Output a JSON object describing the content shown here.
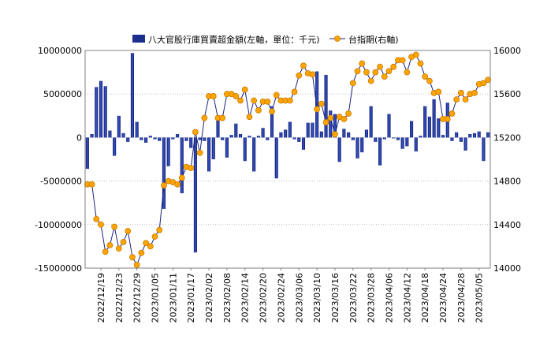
{
  "chart_data": {
    "type": "bar+line",
    "legend": {
      "placement": "top-center",
      "bar_label": "八大官股行庫買賣超金額(左軸，單位：千元)",
      "line_label": "台指期(右軸)"
    },
    "colors": {
      "bar": "#1c2f8c",
      "line": "#1a237e",
      "marker": "#ffa500",
      "marker_edge": "#c87800",
      "grid": "#bdbdbd"
    },
    "grid": "horizontal-dotted",
    "left_axis": {
      "min": -15000000,
      "max": 10000000,
      "ticks": [
        "10000000",
        "5000000",
        "0",
        "-5000000",
        "-10000000",
        "-15000000"
      ]
    },
    "right_axis": {
      "min": 14000,
      "max": 16000,
      "ticks": [
        "16000",
        "15600",
        "15200",
        "14800",
        "14400",
        "14000"
      ]
    },
    "x_labels": [
      "2022/12/19",
      "2022/12/23",
      "2022/12/29",
      "2023/01/05",
      "2023/01/11",
      "2023/01/17",
      "2023/02/02",
      "2023/02/08",
      "2023/02/14",
      "2023/02/20",
      "2023/02/24",
      "2023/03/06",
      "2023/03/10",
      "2023/03/16",
      "2023/03/22",
      "2023/03/28",
      "2023/04/06",
      "2023/04/12",
      "2023/04/18",
      "2023/04/24",
      "2023/04/28",
      "2023/05/05"
    ],
    "x_label_positions": [
      3,
      7,
      11,
      15,
      19,
      23,
      27,
      31,
      35,
      39,
      43,
      47,
      51,
      55,
      59,
      63,
      67,
      71,
      75,
      79,
      83,
      87
    ],
    "bars": [
      -3600000,
      400000,
      5800000,
      6500000,
      5900000,
      800000,
      -2100000,
      2500000,
      500000,
      -500000,
      9700000,
      1800000,
      -300000,
      -600000,
      200000,
      -200000,
      -400000,
      -8200000,
      -3300000,
      -200000,
      400000,
      -6400000,
      -400000,
      -1200000,
      -13200000,
      -300000,
      -400000,
      -3900000,
      -2500000,
      2100000,
      -300000,
      -2300000,
      300000,
      1600000,
      400000,
      -2700000,
      200000,
      -3900000,
      200000,
      1100000,
      -300000,
      3600000,
      -4700000,
      600000,
      900000,
      1800000,
      -200000,
      -500000,
      -1400000,
      1700000,
      1700000,
      7600000,
      700000,
      7200000,
      3100000,
      2700000,
      -2800000,
      1000000,
      600000,
      -300000,
      -2400000,
      -1700000,
      900000,
      3600000,
      -500000,
      -3200000,
      -200000,
      2700000,
      -100000,
      -300000,
      -1300000,
      -1000000,
      1900000,
      -1600000,
      200000,
      3600000,
      2400000,
      4400000,
      2200000,
      300000,
      4000000,
      -400000,
      600000,
      -500000,
      -1500000,
      400000,
      500000,
      700000,
      -2700000,
      600000
    ],
    "line": [
      14770,
      14770,
      14450,
      14400,
      14150,
      14210,
      14380,
      14180,
      14240,
      14340,
      14100,
      14030,
      14140,
      14230,
      14200,
      14290,
      14350,
      14760,
      14800,
      14790,
      14770,
      14830,
      14930,
      14920,
      15250,
      15060,
      15380,
      15580,
      15580,
      15380,
      15380,
      15600,
      15600,
      15580,
      15540,
      15640,
      15390,
      15540,
      15450,
      15530,
      15530,
      15440,
      15590,
      15540,
      15540,
      15540,
      15620,
      15770,
      15860,
      15790,
      15780,
      15460,
      15510,
      15340,
      15380,
      15230,
      15390,
      15370,
      15420,
      15700,
      15810,
      15880,
      15800,
      15720,
      15800,
      15850,
      15760,
      15810,
      15850,
      15910,
      15910,
      15800,
      15940,
      15960,
      15880,
      15760,
      15720,
      15610,
      15620,
      15370,
      15370,
      15420,
      15550,
      15610,
      15550,
      15600,
      15610,
      15690,
      15700,
      15730
    ]
  }
}
